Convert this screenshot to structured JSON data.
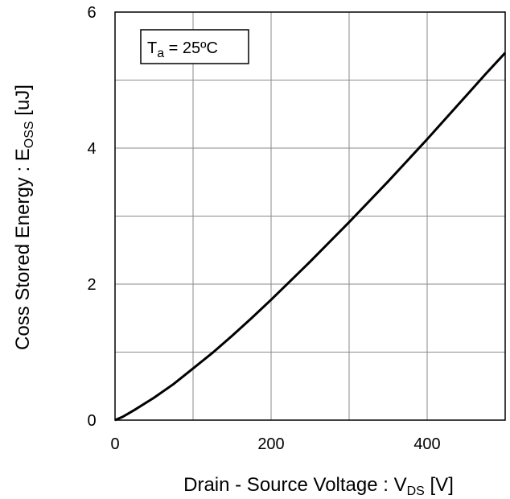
{
  "chart_data": {
    "type": "line",
    "title": "",
    "xlabel_main": "Drain - Source Voltage : V",
    "xlabel_sub": "DS",
    "xlabel_unit": "[V]",
    "ylabel_main": "Coss Stored Energy : E",
    "ylabel_sub": "OSS",
    "ylabel_unit": "[uJ]",
    "xlim": [
      0,
      500
    ],
    "ylim": [
      0,
      6
    ],
    "x_ticks": [
      0,
      100,
      200,
      300,
      400,
      500
    ],
    "x_tick_labels": [
      "0",
      "",
      "200",
      "",
      "400",
      ""
    ],
    "y_ticks": [
      0,
      1,
      2,
      3,
      4,
      5,
      6
    ],
    "y_tick_labels": [
      "0",
      "",
      "2",
      "",
      "4",
      "",
      "6"
    ],
    "grid": true,
    "annotation": {
      "main": "T",
      "sub": "a",
      "rest": " = 25ºC"
    },
    "series": [
      {
        "color": "#000000",
        "x": [
          0,
          10,
          25,
          50,
          75,
          100,
          125,
          150,
          175,
          200,
          225,
          250,
          275,
          300,
          325,
          350,
          375,
          400,
          425,
          450,
          475,
          500
        ],
        "y": [
          0,
          0.05,
          0.15,
          0.33,
          0.53,
          0.76,
          0.99,
          1.24,
          1.5,
          1.77,
          2.05,
          2.33,
          2.62,
          2.91,
          3.21,
          3.51,
          3.82,
          4.13,
          4.45,
          4.77,
          5.09,
          5.4
        ]
      }
    ]
  }
}
